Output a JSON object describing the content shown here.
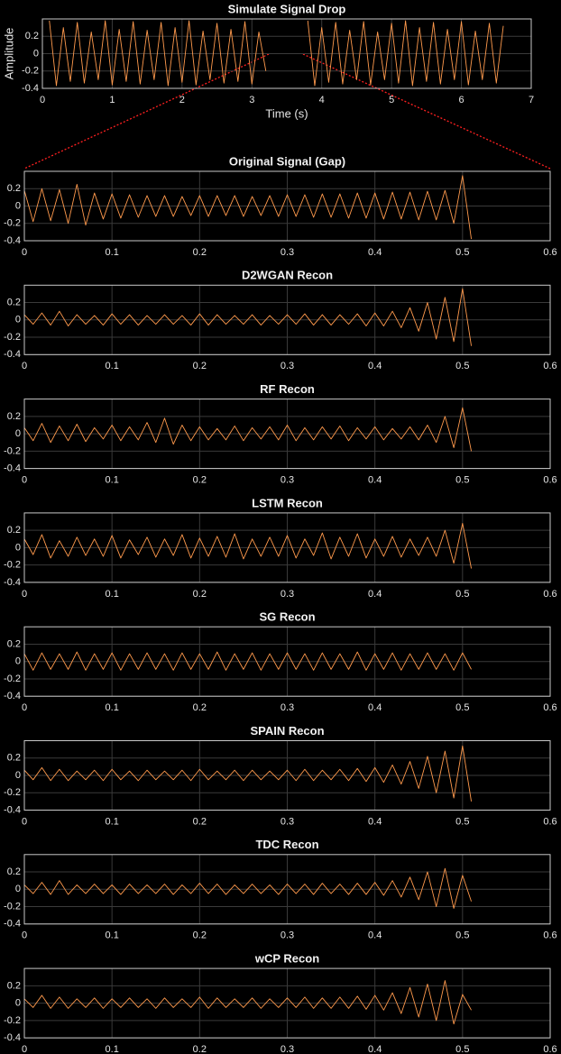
{
  "chart_data": [
    {
      "type": "line",
      "title": "Simulate Signal Drop",
      "xlabel": "Time (s)",
      "ylabel": "Amplitude",
      "color": "#ff9a4d",
      "grid": true,
      "xlim": [
        0,
        7
      ],
      "xticks": [
        0,
        1,
        2,
        3,
        4,
        5,
        6,
        7
      ],
      "ylim": [
        -0.4,
        0.4
      ],
      "yticks": [
        -0.4,
        -0.2,
        0,
        0.2
      ],
      "x": [
        0.1,
        0.2,
        0.3,
        0.4,
        0.5,
        0.6,
        0.7,
        0.8,
        0.9,
        1.0,
        1.1,
        1.2,
        1.3,
        1.4,
        1.5,
        1.6,
        1.7,
        1.8,
        1.9,
        2.0,
        2.1,
        2.2,
        2.3,
        2.4,
        2.5,
        2.6,
        2.7,
        2.8,
        2.9,
        3.0,
        3.1,
        3.2,
        3.3,
        3.4,
        3.5,
        3.6,
        3.7,
        3.8,
        3.9,
        4.0,
        4.1,
        4.2,
        4.3,
        4.4,
        4.5,
        4.6,
        4.7,
        4.8,
        4.9,
        5.0,
        5.1,
        5.2,
        5.3,
        5.4,
        5.5,
        5.6,
        5.7,
        5.8,
        5.9,
        6.0,
        6.1,
        6.2,
        6.3,
        6.4,
        6.5,
        6.6
      ],
      "values": [
        0.38,
        -0.37,
        0.3,
        -0.32,
        0.36,
        -0.34,
        0.25,
        -0.3,
        0.38,
        -0.36,
        0.28,
        -0.32,
        0.37,
        -0.35,
        0.27,
        -0.3,
        0.36,
        -0.37,
        0.3,
        -0.33,
        0.38,
        -0.36,
        0.26,
        -0.3,
        0.35,
        -0.34,
        0.28,
        -0.32,
        0.37,
        -0.35,
        0.25,
        -0.2,
        null,
        null,
        null,
        null,
        null,
        0.38,
        -0.37,
        0.3,
        -0.33,
        0.36,
        -0.35,
        0.27,
        -0.3,
        0.37,
        -0.36,
        0.25,
        -0.3,
        0.35,
        -0.34,
        0.38,
        -0.37,
        0.3,
        -0.32,
        0.36,
        -0.35,
        0.28,
        -0.3,
        0.37,
        -0.36,
        0.26,
        -0.3,
        0.35,
        -0.34,
        0.32
      ]
    },
    {
      "type": "line",
      "title": "Original Signal (Gap)",
      "color": "#ff9a4d",
      "grid": true,
      "xlim": [
        0,
        0.6
      ],
      "xticks": [
        0,
        0.1,
        0.2,
        0.3,
        0.4,
        0.5,
        0.6
      ],
      "ylim": [
        -0.4,
        0.4
      ],
      "yticks": [
        -0.4,
        -0.2,
        0,
        0.2
      ],
      "x": [
        0,
        0.01,
        0.02,
        0.03,
        0.04,
        0.05,
        0.06,
        0.07,
        0.08,
        0.09,
        0.1,
        0.11,
        0.12,
        0.13,
        0.14,
        0.15,
        0.16,
        0.17,
        0.18,
        0.19,
        0.2,
        0.21,
        0.22,
        0.23,
        0.24,
        0.25,
        0.26,
        0.27,
        0.28,
        0.29,
        0.3,
        0.31,
        0.32,
        0.33,
        0.34,
        0.35,
        0.36,
        0.37,
        0.38,
        0.39,
        0.4,
        0.41,
        0.42,
        0.43,
        0.44,
        0.45,
        0.46,
        0.47,
        0.48,
        0.49,
        0.5,
        0.51
      ],
      "values": [
        0.18,
        -0.18,
        0.2,
        -0.17,
        0.19,
        -0.2,
        0.25,
        -0.22,
        0.15,
        -0.15,
        0.14,
        -0.14,
        0.13,
        -0.13,
        0.12,
        -0.12,
        0.12,
        -0.12,
        0.11,
        -0.11,
        0.12,
        -0.12,
        0.12,
        -0.11,
        0.12,
        -0.12,
        0.11,
        -0.11,
        0.12,
        -0.12,
        0.13,
        -0.12,
        0.13,
        -0.13,
        0.14,
        -0.13,
        0.14,
        -0.14,
        0.15,
        -0.14,
        0.15,
        -0.15,
        0.16,
        -0.15,
        0.16,
        -0.16,
        0.17,
        -0.16,
        0.18,
        -0.2,
        0.35,
        -0.38
      ]
    },
    {
      "type": "line",
      "title": "D2WGAN Recon",
      "color": "#ff9a4d",
      "grid": true,
      "xlim": [
        0,
        0.6
      ],
      "xticks": [
        0,
        0.1,
        0.2,
        0.3,
        0.4,
        0.5,
        0.6
      ],
      "ylim": [
        -0.4,
        0.4
      ],
      "yticks": [
        -0.4,
        -0.2,
        0,
        0.2
      ],
      "x": [
        0,
        0.01,
        0.02,
        0.03,
        0.04,
        0.05,
        0.06,
        0.07,
        0.08,
        0.09,
        0.1,
        0.11,
        0.12,
        0.13,
        0.14,
        0.15,
        0.16,
        0.17,
        0.18,
        0.19,
        0.2,
        0.21,
        0.22,
        0.23,
        0.24,
        0.25,
        0.26,
        0.27,
        0.28,
        0.29,
        0.3,
        0.31,
        0.32,
        0.33,
        0.34,
        0.35,
        0.36,
        0.37,
        0.38,
        0.39,
        0.4,
        0.41,
        0.42,
        0.43,
        0.44,
        0.45,
        0.46,
        0.47,
        0.48,
        0.49,
        0.5,
        0.51
      ],
      "values": [
        0.06,
        -0.05,
        0.08,
        -0.06,
        0.1,
        -0.07,
        0.06,
        -0.05,
        0.05,
        -0.06,
        0.07,
        -0.05,
        0.06,
        -0.06,
        0.05,
        -0.05,
        0.06,
        -0.05,
        0.05,
        -0.06,
        0.07,
        -0.06,
        0.06,
        -0.05,
        0.05,
        -0.05,
        0.06,
        -0.06,
        0.05,
        -0.05,
        0.06,
        -0.05,
        0.07,
        -0.06,
        0.06,
        -0.06,
        0.06,
        -0.05,
        0.07,
        -0.07,
        0.08,
        -0.07,
        0.1,
        -0.09,
        0.14,
        -0.13,
        0.2,
        -0.22,
        0.26,
        -0.25,
        0.36,
        -0.3
      ]
    },
    {
      "type": "line",
      "title": "RF Recon",
      "color": "#ff9a4d",
      "grid": true,
      "xlim": [
        0,
        0.6
      ],
      "xticks": [
        0,
        0.1,
        0.2,
        0.3,
        0.4,
        0.5,
        0.6
      ],
      "ylim": [
        -0.4,
        0.4
      ],
      "yticks": [
        -0.4,
        -0.2,
        0,
        0.2
      ],
      "x": [
        0,
        0.01,
        0.02,
        0.03,
        0.04,
        0.05,
        0.06,
        0.07,
        0.08,
        0.09,
        0.1,
        0.11,
        0.12,
        0.13,
        0.14,
        0.15,
        0.16,
        0.17,
        0.18,
        0.19,
        0.2,
        0.21,
        0.22,
        0.23,
        0.24,
        0.25,
        0.26,
        0.27,
        0.28,
        0.29,
        0.3,
        0.31,
        0.32,
        0.33,
        0.34,
        0.35,
        0.36,
        0.37,
        0.38,
        0.39,
        0.4,
        0.41,
        0.42,
        0.43,
        0.44,
        0.45,
        0.46,
        0.47,
        0.48,
        0.49,
        0.5,
        0.51
      ],
      "values": [
        0.07,
        -0.08,
        0.12,
        -0.1,
        0.09,
        -0.08,
        0.11,
        -0.09,
        0.07,
        -0.06,
        0.1,
        -0.08,
        0.08,
        -0.07,
        0.13,
        -0.1,
        0.18,
        -0.12,
        0.1,
        -0.08,
        0.08,
        -0.07,
        0.06,
        -0.07,
        0.09,
        -0.08,
        0.07,
        -0.06,
        0.08,
        -0.07,
        0.1,
        -0.08,
        0.07,
        -0.07,
        0.08,
        -0.06,
        0.09,
        -0.08,
        0.07,
        -0.06,
        0.08,
        -0.07,
        0.06,
        -0.06,
        0.08,
        -0.07,
        0.1,
        -0.1,
        0.2,
        -0.16,
        0.3,
        -0.2
      ]
    },
    {
      "type": "line",
      "title": "LSTM Recon",
      "color": "#ff9a4d",
      "grid": true,
      "xlim": [
        0,
        0.6
      ],
      "xticks": [
        0,
        0.1,
        0.2,
        0.3,
        0.4,
        0.5,
        0.6
      ],
      "ylim": [
        -0.4,
        0.4
      ],
      "yticks": [
        -0.4,
        -0.2,
        0,
        0.2
      ],
      "x": [
        0,
        0.01,
        0.02,
        0.03,
        0.04,
        0.05,
        0.06,
        0.07,
        0.08,
        0.09,
        0.1,
        0.11,
        0.12,
        0.13,
        0.14,
        0.15,
        0.16,
        0.17,
        0.18,
        0.19,
        0.2,
        0.21,
        0.22,
        0.23,
        0.24,
        0.25,
        0.26,
        0.27,
        0.28,
        0.29,
        0.3,
        0.31,
        0.32,
        0.33,
        0.34,
        0.35,
        0.36,
        0.37,
        0.38,
        0.39,
        0.4,
        0.41,
        0.42,
        0.43,
        0.44,
        0.45,
        0.46,
        0.47,
        0.48,
        0.49,
        0.5,
        0.51
      ],
      "values": [
        0.1,
        -0.08,
        0.15,
        -0.12,
        0.08,
        -0.1,
        0.12,
        -0.09,
        0.1,
        -0.1,
        0.14,
        -0.12,
        0.09,
        -0.08,
        0.12,
        -0.11,
        0.1,
        -0.09,
        0.15,
        -0.12,
        0.11,
        -0.1,
        0.13,
        -0.11,
        0.16,
        -0.13,
        0.1,
        -0.1,
        0.12,
        -0.1,
        0.14,
        -0.12,
        0.1,
        -0.09,
        0.17,
        -0.13,
        0.12,
        -0.1,
        0.16,
        -0.12,
        0.1,
        -0.1,
        0.13,
        -0.11,
        0.1,
        -0.09,
        0.12,
        -0.1,
        0.2,
        -0.18,
        0.28,
        -0.24
      ]
    },
    {
      "type": "line",
      "title": "SG Recon",
      "color": "#ff9a4d",
      "grid": true,
      "xlim": [
        0,
        0.6
      ],
      "xticks": [
        0,
        0.1,
        0.2,
        0.3,
        0.4,
        0.5,
        0.6
      ],
      "ylim": [
        -0.4,
        0.4
      ],
      "yticks": [
        -0.4,
        -0.2,
        0,
        0.2
      ],
      "x": [
        0,
        0.01,
        0.02,
        0.03,
        0.04,
        0.05,
        0.06,
        0.07,
        0.08,
        0.09,
        0.1,
        0.11,
        0.12,
        0.13,
        0.14,
        0.15,
        0.16,
        0.17,
        0.18,
        0.19,
        0.2,
        0.21,
        0.22,
        0.23,
        0.24,
        0.25,
        0.26,
        0.27,
        0.28,
        0.29,
        0.3,
        0.31,
        0.32,
        0.33,
        0.34,
        0.35,
        0.36,
        0.37,
        0.38,
        0.39,
        0.4,
        0.41,
        0.42,
        0.43,
        0.44,
        0.45,
        0.46,
        0.47,
        0.48,
        0.49,
        0.5,
        0.51
      ],
      "values": [
        0.09,
        -0.1,
        0.1,
        -0.09,
        0.09,
        -0.09,
        0.11,
        -0.1,
        0.09,
        -0.09,
        0.1,
        -0.1,
        0.09,
        -0.09,
        0.1,
        -0.09,
        0.09,
        -0.1,
        0.1,
        -0.09,
        0.09,
        -0.09,
        0.11,
        -0.1,
        0.09,
        -0.09,
        0.1,
        -0.1,
        0.09,
        -0.09,
        0.1,
        -0.09,
        0.09,
        -0.1,
        0.1,
        -0.09,
        0.09,
        -0.09,
        0.11,
        -0.1,
        0.09,
        -0.09,
        0.1,
        -0.1,
        0.09,
        -0.09,
        0.1,
        -0.09,
        0.09,
        -0.1,
        0.1,
        -0.09
      ]
    },
    {
      "type": "line",
      "title": "SPAIN Recon",
      "color": "#ff9a4d",
      "grid": true,
      "xlim": [
        0,
        0.6
      ],
      "xticks": [
        0,
        0.1,
        0.2,
        0.3,
        0.4,
        0.5,
        0.6
      ],
      "ylim": [
        -0.4,
        0.4
      ],
      "yticks": [
        -0.4,
        -0.2,
        0,
        0.2
      ],
      "x": [
        0,
        0.01,
        0.02,
        0.03,
        0.04,
        0.05,
        0.06,
        0.07,
        0.08,
        0.09,
        0.1,
        0.11,
        0.12,
        0.13,
        0.14,
        0.15,
        0.16,
        0.17,
        0.18,
        0.19,
        0.2,
        0.21,
        0.22,
        0.23,
        0.24,
        0.25,
        0.26,
        0.27,
        0.28,
        0.29,
        0.3,
        0.31,
        0.32,
        0.33,
        0.34,
        0.35,
        0.36,
        0.37,
        0.38,
        0.39,
        0.4,
        0.41,
        0.42,
        0.43,
        0.44,
        0.45,
        0.46,
        0.47,
        0.48,
        0.49,
        0.5,
        0.51
      ],
      "values": [
        0.06,
        -0.05,
        0.09,
        -0.06,
        0.07,
        -0.06,
        0.05,
        -0.05,
        0.06,
        -0.06,
        0.07,
        -0.05,
        0.05,
        -0.06,
        0.06,
        -0.05,
        0.05,
        -0.05,
        0.06,
        -0.06,
        0.07,
        -0.05,
        0.05,
        -0.05,
        0.06,
        -0.06,
        0.06,
        -0.05,
        0.05,
        -0.05,
        0.06,
        -0.06,
        0.07,
        -0.06,
        0.06,
        -0.05,
        0.07,
        -0.06,
        0.08,
        -0.07,
        0.09,
        -0.08,
        0.12,
        -0.1,
        0.16,
        -0.15,
        0.22,
        -0.2,
        0.28,
        -0.26,
        0.34,
        -0.3
      ]
    },
    {
      "type": "line",
      "title": "TDC Recon",
      "color": "#ff9a4d",
      "grid": true,
      "xlim": [
        0,
        0.6
      ],
      "xticks": [
        0,
        0.1,
        0.2,
        0.3,
        0.4,
        0.5,
        0.6
      ],
      "ylim": [
        -0.4,
        0.4
      ],
      "yticks": [
        -0.4,
        -0.2,
        0,
        0.2
      ],
      "x": [
        0,
        0.01,
        0.02,
        0.03,
        0.04,
        0.05,
        0.06,
        0.07,
        0.08,
        0.09,
        0.1,
        0.11,
        0.12,
        0.13,
        0.14,
        0.15,
        0.16,
        0.17,
        0.18,
        0.19,
        0.2,
        0.21,
        0.22,
        0.23,
        0.24,
        0.25,
        0.26,
        0.27,
        0.28,
        0.29,
        0.3,
        0.31,
        0.32,
        0.33,
        0.34,
        0.35,
        0.36,
        0.37,
        0.38,
        0.39,
        0.4,
        0.41,
        0.42,
        0.43,
        0.44,
        0.45,
        0.46,
        0.47,
        0.48,
        0.49,
        0.5,
        0.51
      ],
      "values": [
        0.05,
        -0.05,
        0.08,
        -0.06,
        0.1,
        -0.06,
        0.05,
        -0.05,
        0.06,
        -0.05,
        0.05,
        -0.06,
        0.06,
        -0.05,
        0.05,
        -0.05,
        0.06,
        -0.06,
        0.05,
        -0.05,
        0.07,
        -0.05,
        0.06,
        -0.06,
        0.05,
        -0.05,
        0.06,
        -0.05,
        0.05,
        -0.06,
        0.06,
        -0.05,
        0.06,
        -0.06,
        0.07,
        -0.05,
        0.06,
        -0.06,
        0.07,
        -0.06,
        0.08,
        -0.07,
        0.1,
        -0.09,
        0.14,
        -0.12,
        0.2,
        -0.2,
        0.24,
        -0.22,
        0.16,
        -0.14
      ]
    },
    {
      "type": "line",
      "title": "wCP Recon",
      "color": "#ff9a4d",
      "grid": true,
      "xlim": [
        0,
        0.6
      ],
      "xticks": [
        0,
        0.1,
        0.2,
        0.3,
        0.4,
        0.5,
        0.6
      ],
      "ylim": [
        -0.4,
        0.4
      ],
      "yticks": [
        -0.4,
        -0.2,
        0,
        0.2
      ],
      "x": [
        0,
        0.01,
        0.02,
        0.03,
        0.04,
        0.05,
        0.06,
        0.07,
        0.08,
        0.09,
        0.1,
        0.11,
        0.12,
        0.13,
        0.14,
        0.15,
        0.16,
        0.17,
        0.18,
        0.19,
        0.2,
        0.21,
        0.22,
        0.23,
        0.24,
        0.25,
        0.26,
        0.27,
        0.28,
        0.29,
        0.3,
        0.31,
        0.32,
        0.33,
        0.34,
        0.35,
        0.36,
        0.37,
        0.38,
        0.39,
        0.4,
        0.41,
        0.42,
        0.43,
        0.44,
        0.45,
        0.46,
        0.47,
        0.48,
        0.49,
        0.5,
        0.51
      ],
      "values": [
        0.05,
        -0.05,
        0.09,
        -0.06,
        0.07,
        -0.06,
        0.05,
        -0.05,
        0.06,
        -0.06,
        0.05,
        -0.05,
        0.06,
        -0.05,
        0.05,
        -0.06,
        0.06,
        -0.05,
        0.05,
        -0.05,
        0.07,
        -0.06,
        0.06,
        -0.05,
        0.05,
        -0.05,
        0.06,
        -0.06,
        0.05,
        -0.05,
        0.06,
        -0.05,
        0.07,
        -0.06,
        0.06,
        -0.06,
        0.07,
        -0.06,
        0.08,
        -0.07,
        0.09,
        -0.08,
        0.12,
        -0.12,
        0.18,
        -0.16,
        0.22,
        -0.2,
        0.26,
        -0.24,
        0.1,
        -0.08
      ]
    }
  ]
}
